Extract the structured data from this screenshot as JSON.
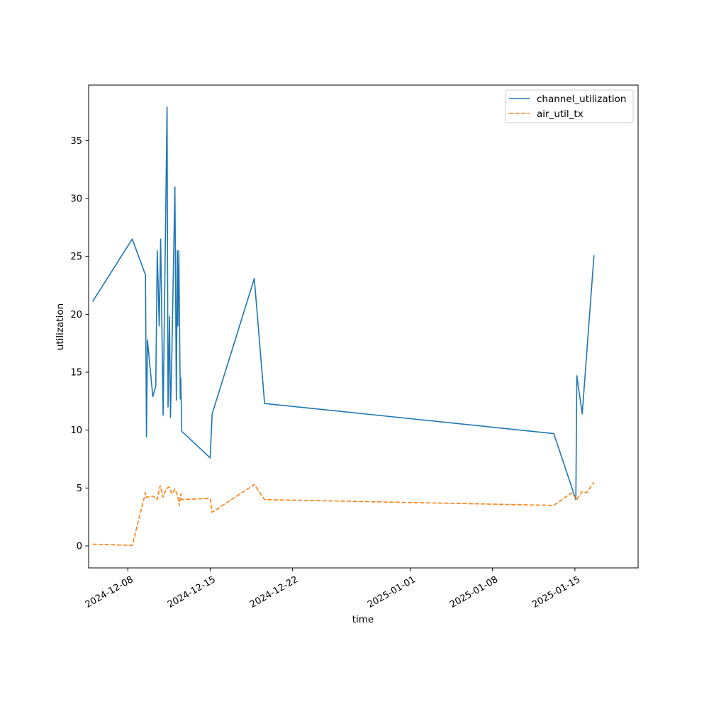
{
  "chart_data": {
    "type": "line",
    "title": "",
    "xlabel": "time",
    "ylabel": "utilization",
    "x_axis_type": "date",
    "xlim": [
      "2024-12-04T16:00",
      "2025-01-20T09:00"
    ],
    "ylim": [
      -1.9,
      39.8
    ],
    "x_ticks": [
      "2024-12-08",
      "2024-12-15",
      "2024-12-22",
      "2025-01-01",
      "2025-01-08",
      "2025-01-15"
    ],
    "y_ticks": [
      0,
      5,
      10,
      15,
      20,
      25,
      30,
      35
    ],
    "grid": false,
    "legend_position": "top-right",
    "series": [
      {
        "name": "channel_utilization",
        "color": "#1f77b4",
        "style": "solid",
        "points": [
          {
            "x": "2024-12-05T00:00",
            "y": 21.1
          },
          {
            "x": "2024-12-08T09:00",
            "y": 26.5
          },
          {
            "x": "2024-12-09T12:00",
            "y": 23.4
          },
          {
            "x": "2024-12-09T14:00",
            "y": 9.4
          },
          {
            "x": "2024-12-09T16:00",
            "y": 17.8
          },
          {
            "x": "2024-12-10T03:00",
            "y": 12.9
          },
          {
            "x": "2024-12-10T09:00",
            "y": 13.8
          },
          {
            "x": "2024-12-10T12:00",
            "y": 25.5
          },
          {
            "x": "2024-12-10T16:00",
            "y": 19.0
          },
          {
            "x": "2024-12-10T19:00",
            "y": 26.5
          },
          {
            "x": "2024-12-11T00:00",
            "y": 11.3
          },
          {
            "x": "2024-12-11T08:00",
            "y": 37.9
          },
          {
            "x": "2024-12-11T10:00",
            "y": 12.0
          },
          {
            "x": "2024-12-11T13:00",
            "y": 19.8
          },
          {
            "x": "2024-12-11T15:00",
            "y": 11.1
          },
          {
            "x": "2024-12-11T18:00",
            "y": 17.0
          },
          {
            "x": "2024-12-12T00:00",
            "y": 31.0
          },
          {
            "x": "2024-12-12T03:00",
            "y": 12.6
          },
          {
            "x": "2024-12-12T05:00",
            "y": 25.5
          },
          {
            "x": "2024-12-12T06:00",
            "y": 19.0
          },
          {
            "x": "2024-12-12T08:00",
            "y": 25.5
          },
          {
            "x": "2024-12-12T11:00",
            "y": 12.7
          },
          {
            "x": "2024-12-12T12:00",
            "y": 14.5
          },
          {
            "x": "2024-12-12T14:00",
            "y": 9.9
          },
          {
            "x": "2024-12-15T00:00",
            "y": 7.6
          },
          {
            "x": "2024-12-15T04:00",
            "y": 11.4
          },
          {
            "x": "2024-12-18T18:00",
            "y": 23.1
          },
          {
            "x": "2024-12-19T15:00",
            "y": 12.3
          },
          {
            "x": "2025-01-13T05:00",
            "y": 9.7
          },
          {
            "x": "2025-01-15T02:00",
            "y": 4.0
          },
          {
            "x": "2025-01-15T04:00",
            "y": 14.7
          },
          {
            "x": "2025-01-15T15:00",
            "y": 11.4
          },
          {
            "x": "2025-01-16T15:00",
            "y": 25.1
          }
        ]
      },
      {
        "name": "air_util_tx",
        "color": "#ff7f0e",
        "style": "dashed",
        "points": [
          {
            "x": "2024-12-05T00:00",
            "y": 0.15
          },
          {
            "x": "2024-12-08T09:00",
            "y": 0.05
          },
          {
            "x": "2024-12-09T12:00",
            "y": 4.6
          },
          {
            "x": "2024-12-09T14:00",
            "y": 4.2
          },
          {
            "x": "2024-12-10T03:00",
            "y": 4.3
          },
          {
            "x": "2024-12-10T12:00",
            "y": 4.0
          },
          {
            "x": "2024-12-10T18:00",
            "y": 5.2
          },
          {
            "x": "2024-12-11T00:00",
            "y": 4.2
          },
          {
            "x": "2024-12-11T06:00",
            "y": 4.9
          },
          {
            "x": "2024-12-11T12:00",
            "y": 5.1
          },
          {
            "x": "2024-12-11T18:00",
            "y": 4.5
          },
          {
            "x": "2024-12-12T00:00",
            "y": 4.9
          },
          {
            "x": "2024-12-12T06:00",
            "y": 4.3
          },
          {
            "x": "2024-12-12T09:00",
            "y": 3.5
          },
          {
            "x": "2024-12-12T12:00",
            "y": 4.5
          },
          {
            "x": "2024-12-12T14:00",
            "y": 4.0
          },
          {
            "x": "2024-12-15T00:00",
            "y": 4.1
          },
          {
            "x": "2024-12-15T04:00",
            "y": 2.9
          },
          {
            "x": "2024-12-18T18:00",
            "y": 5.3
          },
          {
            "x": "2024-12-19T15:00",
            "y": 4.0
          },
          {
            "x": "2025-01-13T05:00",
            "y": 3.5
          },
          {
            "x": "2025-01-14T18:00",
            "y": 4.6
          },
          {
            "x": "2025-01-15T04:00",
            "y": 4.0
          },
          {
            "x": "2025-01-15T15:00",
            "y": 4.7
          },
          {
            "x": "2025-01-16T00:00",
            "y": 4.6
          },
          {
            "x": "2025-01-16T15:00",
            "y": 5.5
          }
        ]
      }
    ]
  }
}
